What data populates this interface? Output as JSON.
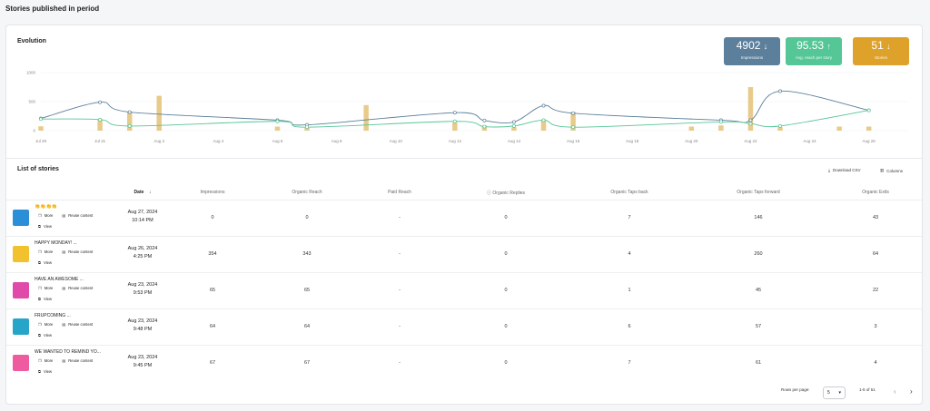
{
  "page_title": "Stories published in period",
  "evolution": {
    "title": "Evolution",
    "kpis": [
      {
        "value": "4902",
        "arrow": "↓",
        "label": "Impressions",
        "color": "#5c7f9b"
      },
      {
        "value": "95.53",
        "arrow": "↑",
        "label": "Avg. reach per story",
        "color": "#55c696"
      },
      {
        "value": "51",
        "arrow": "↓",
        "label": "Stories",
        "color": "#dea22a"
      }
    ]
  },
  "chart_data": {
    "type": "bar",
    "y_ticks": [
      "1000",
      "500",
      "0"
    ],
    "ylim": [
      0,
      1000
    ],
    "x_labels": [
      "Jul 29",
      "Jul 31",
      "Aug 2",
      "Aug 4",
      "Aug 6",
      "Aug 8",
      "Aug 10",
      "Aug 12",
      "Aug 14",
      "Aug 16",
      "Aug 18",
      "Aug 20",
      "Aug 22",
      "Aug 24",
      "Aug 26"
    ],
    "x_range": [
      0,
      29.3
    ],
    "bars": {
      "color": "#e8cb8b",
      "x": [
        0,
        2,
        3,
        4,
        8,
        9,
        11,
        14,
        15,
        16,
        17,
        18,
        22,
        23,
        24,
        25,
        27,
        28
      ],
      "y": [
        75,
        200,
        330,
        600,
        70,
        50,
        440,
        140,
        90,
        60,
        190,
        320,
        70,
        90,
        750,
        60,
        70,
        70
      ]
    },
    "series": [
      {
        "color": "#5c7f9b",
        "x": [
          0,
          2,
          3,
          8,
          9,
          14,
          15,
          16,
          17,
          18,
          23,
          24,
          25,
          28
        ],
        "y": [
          210,
          490,
          320,
          180,
          100,
          310,
          175,
          150,
          430,
          300,
          180,
          180,
          680,
          350
        ]
      },
      {
        "color": "#55c696",
        "x": [
          0,
          2,
          3,
          8,
          9,
          14,
          15,
          16,
          17,
          18,
          23,
          24,
          25,
          28
        ],
        "y": [
          200,
          190,
          80,
          160,
          60,
          160,
          70,
          80,
          180,
          60,
          150,
          120,
          80,
          350
        ]
      }
    ]
  },
  "list": {
    "title": "List of stories",
    "download_label": "Download CSV",
    "columns_label": "Columns",
    "headers": {
      "date": "Date",
      "impressions": "Impressions",
      "organic_reach": "Organic Reach",
      "paid_reach": "Paid Reach",
      "organic_replies": "Organic Replies",
      "taps_back": "Organic Taps back",
      "taps_forward": "Organic Taps forward",
      "exits": "Organic Exits"
    },
    "action_more": "More",
    "action_reuse": "Reuse content",
    "action_view": "View",
    "rows": [
      {
        "caption": "👏👏👏👏",
        "date1": "Aug 27, 2024",
        "date2": "10:14 PM",
        "impressions": "0",
        "reach": "0",
        "paid": "-",
        "replies": "0",
        "back": "7",
        "forward": "146",
        "exits": "43",
        "thumb": "#2a8fd6"
      },
      {
        "caption": "HAPPY MONDAY! ...",
        "date1": "Aug 26, 2024",
        "date2": "4:25 PM",
        "impressions": "354",
        "reach": "343",
        "paid": "-",
        "replies": "0",
        "back": "4",
        "forward": "260",
        "exits": "64",
        "thumb": "#f2c12e"
      },
      {
        "caption": "HAVE AN AWESOME ...",
        "date1": "Aug 23, 2024",
        "date2": "9:53 PM",
        "impressions": "65",
        "reach": "65",
        "paid": "-",
        "replies": "0",
        "back": "1",
        "forward": "45",
        "exits": "22",
        "thumb": "#e04aa8"
      },
      {
        "caption": "FRUPCOMING ...",
        "date1": "Aug 23, 2024",
        "date2": "9:48 PM",
        "impressions": "64",
        "reach": "64",
        "paid": "-",
        "replies": "0",
        "back": "6",
        "forward": "57",
        "exits": "3",
        "thumb": "#27a5c9"
      },
      {
        "caption": "WE WANTED TO REMIND YO...",
        "date1": "Aug 23, 2024",
        "date2": "9:45 PM",
        "impressions": "67",
        "reach": "67",
        "paid": "-",
        "replies": "0",
        "back": "7",
        "forward": "61",
        "exits": "4",
        "thumb": "#ee5b9f"
      }
    ]
  },
  "pagination": {
    "rows_per_page_label": "Rows per page:",
    "rows_per_page_value": "5",
    "range": "1-5 of 51",
    "prev": "‹",
    "next": "›"
  }
}
